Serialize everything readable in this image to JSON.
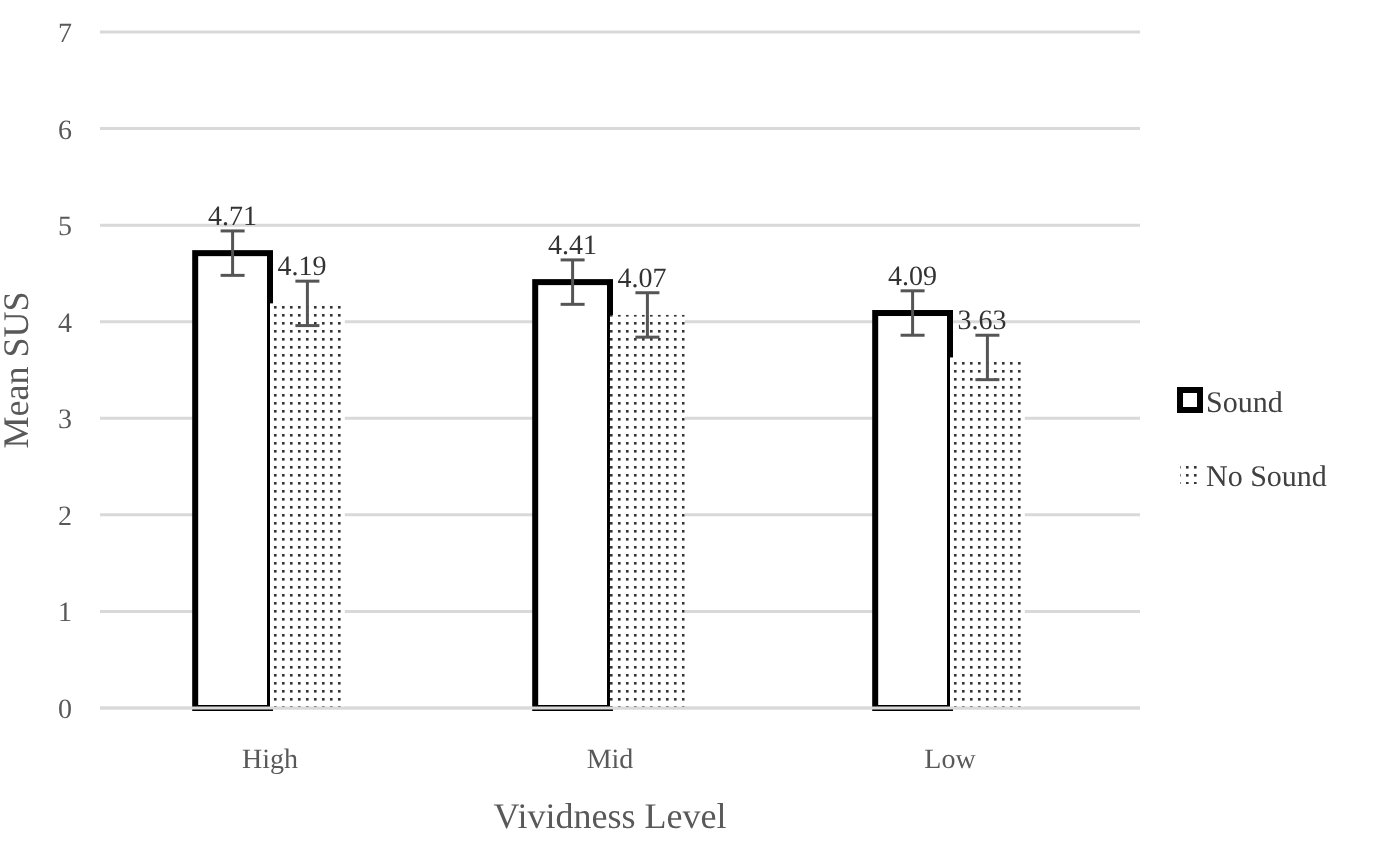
{
  "chart_data": {
    "type": "bar",
    "xlabel": "Vividness Level",
    "ylabel": "Mean SUS",
    "categories": [
      "High",
      "Mid",
      "Low"
    ],
    "series": [
      {
        "name": "Sound",
        "color": "#000000",
        "values": [
          4.71,
          4.41,
          4.09
        ],
        "errors": [
          0.23,
          0.23,
          0.23
        ]
      },
      {
        "name": "No Sound",
        "color": "#333333",
        "values": [
          4.19,
          4.07,
          3.63
        ],
        "errors": [
          0.23,
          0.23,
          0.23
        ]
      }
    ],
    "ylim": [
      0,
      7
    ],
    "yticks": [
      0,
      1,
      2,
      3,
      4,
      5,
      6,
      7
    ],
    "grid": "y",
    "legend": "right",
    "data_labels": true
  }
}
